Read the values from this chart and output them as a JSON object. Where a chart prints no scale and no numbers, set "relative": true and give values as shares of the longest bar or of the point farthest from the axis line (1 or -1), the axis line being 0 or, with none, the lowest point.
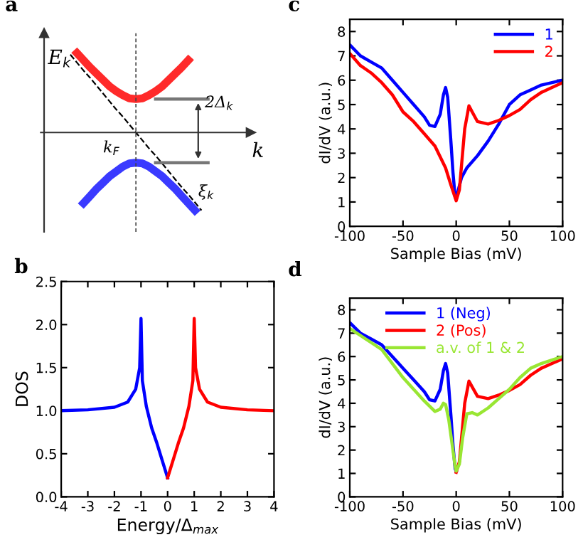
{
  "chart_data": [
    {
      "type": "line",
      "title": "a",
      "relative": true,
      "xlabel": "k",
      "ylabel": "E$_{k}$",
      "grid": false,
      "legend": false,
      "categories": [
        null,
        null,
        null,
        null,
        null,
        null,
        null,
        null,
        null,
        null,
        null,
        null,
        null,
        null,
        null,
        null,
        null,
        null,
        null,
        null,
        null,
        null,
        null,
        null,
        null,
        null,
        null,
        null,
        null,
        null,
        null,
        null
      ],
      "annotations": [
        "k$_{F}$",
        "2Δ$_{k}$",
        "ξ$_{k}$"
      ],
      "series": [
        {
          "color": "#ff2a2a",
          "values": [
            null,
            null,
            null,
            null,
            null,
            1.0,
            0.91,
            0.82,
            0.74,
            0.66,
            0.58,
            0.52,
            0.47,
            0.43,
            0.42,
            0.43,
            0.47,
            0.52,
            0.58,
            0.66,
            0.74,
            0.82,
            0.91,
            null,
            null,
            null,
            null,
            null,
            null,
            null,
            null,
            null
          ]
        },
        {
          "color": "#3a3aff",
          "values": [
            null,
            null,
            null,
            null,
            null,
            null,
            -0.89,
            -0.8,
            -0.71,
            -0.63,
            -0.55,
            -0.49,
            -0.43,
            -0.39,
            -0.38,
            -0.39,
            -0.43,
            -0.49,
            -0.55,
            -0.63,
            -0.71,
            -0.8,
            -0.89,
            -0.98,
            null,
            null,
            null,
            null,
            null,
            null,
            null,
            null
          ]
        },
        {
          "color": "#000000",
          "line_style": "dashed",
          "values": [
            null,
            null,
            null,
            null,
            0.98,
            0.88,
            0.78,
            0.69,
            0.59,
            0.49,
            0.39,
            0.29,
            0.2,
            0.1,
            0,
            -0.1,
            -0.2,
            -0.29,
            -0.39,
            -0.49,
            -0.59,
            -0.69,
            -0.78,
            -0.88,
            -0.98,
            null,
            null,
            null,
            null,
            null,
            null,
            null
          ]
        }
      ]
    },
    {
      "type": "line",
      "title": "b",
      "xlabel": "Energy/Δ$_{max}$",
      "ylabel": "DOS",
      "grid": false,
      "legend": false,
      "xlim": [
        -4,
        4
      ],
      "xticks": [
        -4,
        -3,
        -2,
        -1,
        0,
        1,
        2,
        3,
        4
      ],
      "ylim": [
        0,
        2.5
      ],
      "yticks": [
        {
          "value": 0,
          "label": "0.0"
        },
        0.5,
        {
          "value": 1,
          "label": "1.0"
        },
        1.5,
        {
          "value": 2,
          "label": "2.0"
        },
        2.5
      ],
      "series": [
        {
          "color": "#0000ff",
          "x": [
            -4,
            -3,
            -2,
            -1.5,
            -1.2,
            -1.05,
            -1,
            -0.95,
            -0.8,
            -0.6,
            -0.4,
            -0.2,
            0
          ],
          "values": [
            1.0,
            1.01,
            1.04,
            1.1,
            1.25,
            1.5,
            2.07,
            1.35,
            1.05,
            0.8,
            0.62,
            0.42,
            0.22
          ]
        },
        {
          "color": "#ff0000",
          "x": [
            0,
            0.2,
            0.4,
            0.6,
            0.8,
            0.95,
            1,
            1.05,
            1.2,
            1.5,
            2,
            3,
            4
          ],
          "values": [
            0.22,
            0.42,
            0.62,
            0.8,
            1.05,
            1.35,
            2.07,
            1.5,
            1.25,
            1.1,
            1.04,
            1.01,
            1.0
          ]
        }
      ]
    },
    {
      "type": "line",
      "title": "c",
      "xlabel": "Sample Bias (mV)",
      "ylabel": "dI/dV (a.u.)",
      "grid": false,
      "legend": "top right",
      "xlim": [
        -100,
        100
      ],
      "xticks": [
        -100,
        -50,
        0,
        50,
        100
      ],
      "ylim": [
        0,
        8.5
      ],
      "yticks": [
        0,
        1,
        2,
        3,
        4,
        5,
        6,
        7,
        8
      ],
      "series": [
        {
          "name": "1",
          "color": "#0000ff",
          "x": [
            -100,
            -90,
            -80,
            -70,
            -60,
            -50,
            -40,
            -30,
            -25,
            -20,
            -15,
            -12,
            -10,
            -8,
            -5,
            -3,
            -1,
            0,
            2,
            5,
            10,
            20,
            30,
            40,
            50,
            60,
            70,
            80,
            90,
            100
          ],
          "values": [
            7.45,
            7.0,
            6.75,
            6.5,
            6.0,
            5.5,
            5.0,
            4.5,
            4.15,
            4.1,
            4.6,
            5.4,
            5.7,
            5.3,
            3.5,
            2.2,
            1.2,
            1.1,
            1.5,
            2.0,
            2.4,
            2.9,
            3.5,
            4.2,
            5.0,
            5.4,
            5.6,
            5.8,
            5.9,
            6.0
          ]
        },
        {
          "name": "2",
          "color": "#ff0000",
          "x": [
            -100,
            -90,
            -80,
            -70,
            -60,
            -50,
            -40,
            -30,
            -20,
            -10,
            -5,
            0,
            3,
            5,
            8,
            12,
            15,
            20,
            30,
            40,
            50,
            60,
            70,
            80,
            90,
            100
          ],
          "values": [
            7.1,
            6.6,
            6.3,
            5.9,
            5.4,
            4.7,
            4.3,
            3.8,
            3.3,
            2.4,
            1.7,
            1.05,
            1.5,
            2.5,
            4.0,
            4.95,
            4.7,
            4.3,
            4.2,
            4.35,
            4.55,
            4.8,
            5.2,
            5.5,
            5.7,
            5.9
          ]
        }
      ]
    },
    {
      "type": "line",
      "title": "d",
      "xlabel": "Sample Bias (mV)",
      "ylabel": "dI/dV (a.u.)",
      "grid": false,
      "legend": "top",
      "xlim": [
        -100,
        100
      ],
      "xticks": [
        -100,
        -50,
        0,
        50,
        100
      ],
      "ylim": [
        0,
        8.5
      ],
      "yticks": [
        0,
        1,
        2,
        3,
        4,
        5,
        6,
        7,
        8
      ],
      "series": [
        {
          "name": "1 (Neg)",
          "color": "#0000ff",
          "x": [
            -100,
            -90,
            -80,
            -70,
            -60,
            -50,
            -40,
            -30,
            -25,
            -20,
            -15,
            -12,
            -10,
            -8,
            -5,
            -3,
            -1,
            0
          ],
          "values": [
            7.45,
            7.0,
            6.75,
            6.5,
            6.0,
            5.5,
            5.0,
            4.5,
            4.15,
            4.1,
            4.6,
            5.4,
            5.7,
            5.3,
            3.5,
            2.2,
            1.2,
            1.1
          ]
        },
        {
          "name": "2 (Pos)",
          "color": "#ff0000",
          "x": [
            0,
            3,
            5,
            8,
            12,
            15,
            20,
            30,
            40,
            50,
            60,
            70,
            80,
            90,
            100
          ],
          "values": [
            1.05,
            1.5,
            2.5,
            4.0,
            4.95,
            4.7,
            4.3,
            4.2,
            4.35,
            4.55,
            4.8,
            5.2,
            5.5,
            5.7,
            5.9
          ]
        },
        {
          "name": "a.v. of 1 & 2",
          "color": "#99e633",
          "x": [
            -100,
            -80,
            -70,
            -60,
            -50,
            -40,
            -30,
            -20,
            -15,
            -12,
            -10,
            -7,
            -4,
            -1,
            0,
            3,
            6,
            10,
            15,
            20,
            30,
            40,
            50,
            60,
            70,
            80,
            90,
            100
          ],
          "values": [
            7.2,
            6.6,
            6.3,
            5.7,
            5.1,
            4.6,
            4.1,
            3.65,
            3.75,
            4.0,
            3.95,
            3.3,
            2.3,
            1.3,
            1.1,
            1.4,
            2.5,
            3.55,
            3.6,
            3.5,
            3.8,
            4.2,
            4.6,
            5.1,
            5.5,
            5.7,
            5.85,
            6.0
          ]
        }
      ]
    }
  ]
}
